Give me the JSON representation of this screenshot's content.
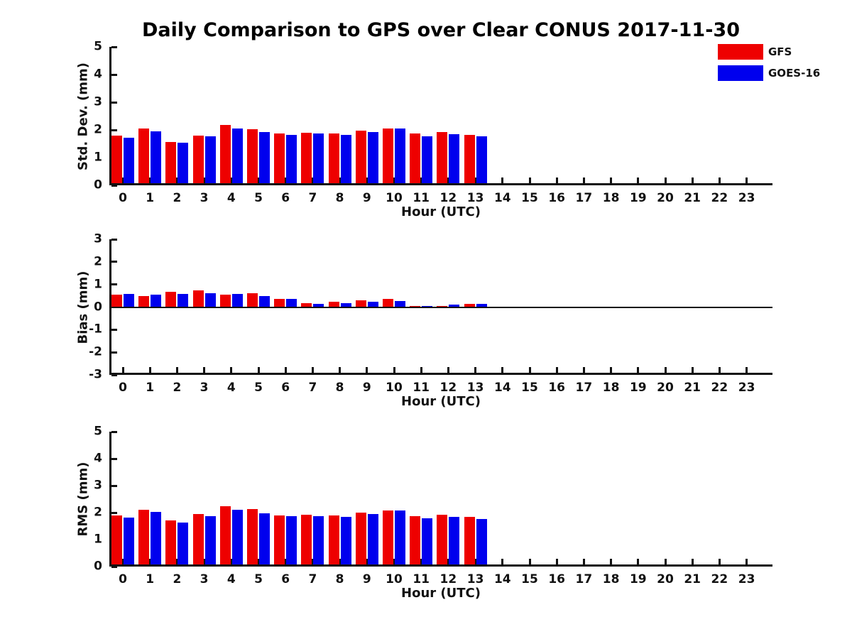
{
  "title": "Daily Comparison to GPS over Clear CONUS 2017-11-30",
  "legend": {
    "items": [
      {
        "label": "GFS",
        "color": "#ee0000"
      },
      {
        "label": "GOES-16",
        "color": "#0000ee"
      }
    ]
  },
  "chart_data": [
    {
      "type": "bar",
      "id": "stddev",
      "ylabel": "Std. Dev. (mm)",
      "xlabel": "Hour (UTC)",
      "ylim": [
        0,
        5
      ],
      "yticks": [
        0,
        1,
        2,
        3,
        4,
        5
      ],
      "x_hours": [
        "0",
        "1",
        "2",
        "3",
        "4",
        "5",
        "6",
        "7",
        "8",
        "9",
        "10",
        "11",
        "12",
        "13",
        "14",
        "15",
        "16",
        "17",
        "18",
        "19",
        "20",
        "21",
        "22",
        "23"
      ],
      "grid": false,
      "legend_position": "upper-right-outside",
      "series": [
        {
          "name": "GFS",
          "color": "#ee0000",
          "values": [
            1.8,
            2.05,
            1.57,
            1.8,
            2.18,
            2.03,
            1.87,
            1.91,
            1.88,
            1.97,
            2.06,
            1.88,
            1.93,
            1.83
          ]
        },
        {
          "name": "GOES-16",
          "color": "#0000ee",
          "values": [
            1.72,
            1.95,
            1.53,
            1.76,
            2.04,
            1.92,
            1.82,
            1.87,
            1.83,
            1.93,
            2.06,
            1.78,
            1.85,
            1.76
          ]
        }
      ]
    },
    {
      "type": "bar",
      "id": "bias",
      "ylabel": "Bias (mm)",
      "xlabel": "Hour (UTC)",
      "ylim": [
        -3,
        3
      ],
      "yticks": [
        -3,
        -2,
        -1,
        0,
        1,
        2,
        3
      ],
      "x_hours": [
        "0",
        "1",
        "2",
        "3",
        "4",
        "5",
        "6",
        "7",
        "8",
        "9",
        "10",
        "11",
        "12",
        "13",
        "14",
        "15",
        "16",
        "17",
        "18",
        "19",
        "20",
        "21",
        "22",
        "23"
      ],
      "grid": false,
      "zero_line": true,
      "series": [
        {
          "name": "GFS",
          "color": "#ee0000",
          "values": [
            0.56,
            0.49,
            0.69,
            0.74,
            0.56,
            0.6,
            0.36,
            0.17,
            0.23,
            0.29,
            0.35,
            0.06,
            0.04,
            0.14
          ]
        },
        {
          "name": "GOES-16",
          "color": "#0000ee",
          "values": [
            0.58,
            0.56,
            0.58,
            0.61,
            0.57,
            0.48,
            0.36,
            0.15,
            0.16,
            0.22,
            0.26,
            0.05,
            0.1,
            0.15
          ]
        }
      ]
    },
    {
      "type": "bar",
      "id": "rms",
      "ylabel": "RMS (mm)",
      "xlabel": "Hour (UTC)",
      "ylim": [
        0,
        5
      ],
      "yticks": [
        0,
        1,
        2,
        3,
        4,
        5
      ],
      "x_hours": [
        "0",
        "1",
        "2",
        "3",
        "4",
        "5",
        "6",
        "7",
        "8",
        "9",
        "10",
        "11",
        "12",
        "13",
        "14",
        "15",
        "16",
        "17",
        "18",
        "19",
        "20",
        "21",
        "22",
        "23"
      ],
      "grid": false,
      "series": [
        {
          "name": "GFS",
          "color": "#ee0000",
          "values": [
            1.89,
            2.11,
            1.72,
            1.95,
            2.25,
            2.12,
            1.9,
            1.92,
            1.89,
            1.99,
            2.09,
            1.88,
            1.93,
            1.84
          ]
        },
        {
          "name": "GOES-16",
          "color": "#0000ee",
          "values": [
            1.82,
            2.03,
            1.64,
            1.86,
            2.11,
            1.98,
            1.86,
            1.88,
            1.84,
            1.94,
            2.08,
            1.78,
            1.85,
            1.77
          ]
        }
      ]
    }
  ]
}
